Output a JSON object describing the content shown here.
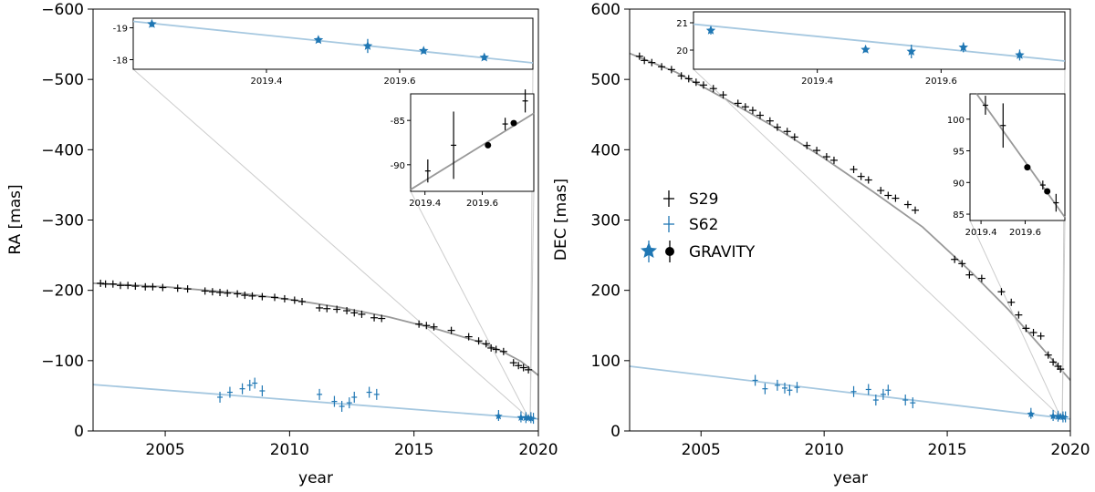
{
  "colors": {
    "black_series": "#000000",
    "blue_series": "#1f77b4",
    "blue_fit": "#a6c8e0",
    "black_fit": "#999999",
    "connector": "#cccccc"
  },
  "chart_data": [
    {
      "type": "scatter",
      "panel": "left",
      "xlabel": "year",
      "ylabel": "RA [mas]",
      "xlim": [
        2002.1,
        2020.0
      ],
      "ylim": [
        0,
        -600
      ],
      "xticks": [
        2005,
        2010,
        2015,
        2020
      ],
      "xtick_labels": [
        "2005",
        "2010",
        "2015",
        "2020"
      ],
      "yticks": [
        0,
        -100,
        -200,
        -300,
        -400,
        -500,
        -600
      ],
      "ytick_labels": [
        "0",
        "−100",
        "−200",
        "−300",
        "−400",
        "−500",
        "−600"
      ],
      "fits": [
        {
          "name": "S29 orbit",
          "x": [
            2002.1,
            2005,
            2008,
            2010,
            2012,
            2014,
            2016,
            2017.5,
            2018.5,
            2019.3,
            2020.0
          ],
          "y": [
            -210,
            -205,
            -196,
            -187,
            -176,
            -162,
            -144,
            -128,
            -114,
            -99,
            -79
          ]
        },
        {
          "name": "S62 orbit",
          "x": [
            2002.1,
            2020.0
          ],
          "y": [
            -66,
            -17
          ]
        }
      ],
      "series": [
        {
          "name": "S29",
          "x": [
            2002.4,
            2002.6,
            2002.9,
            2003.2,
            2003.5,
            2003.8,
            2004.2,
            2004.5,
            2004.9,
            2005.5,
            2005.9,
            2006.6,
            2006.9,
            2007.2,
            2007.5,
            2007.9,
            2008.2,
            2008.5,
            2008.9,
            2009.4,
            2009.8,
            2010.2,
            2010.5,
            2011.2,
            2011.5,
            2011.9,
            2012.3,
            2012.6,
            2012.9,
            2013.4,
            2013.7,
            2015.2,
            2015.5,
            2015.8,
            2016.5,
            2017.2,
            2017.6,
            2017.9,
            2018.1,
            2018.3,
            2018.6,
            2019.0,
            2019.2,
            2019.4,
            2019.6
          ],
          "y": [
            -210,
            -209,
            -209,
            -207,
            -207,
            -206,
            -205,
            -205,
            -204,
            -203,
            -202,
            -199,
            -198,
            -197,
            -196,
            -195,
            -193,
            -192,
            -191,
            -190,
            -188,
            -186,
            -184,
            -175,
            -174,
            -173,
            -171,
            -168,
            -166,
            -161,
            -160,
            -152,
            -150,
            -148,
            -143,
            -134,
            -128,
            -124,
            -118,
            -116,
            -113,
            -97,
            -93,
            -90,
            -87
          ]
        },
        {
          "name": "S62",
          "x": [
            2007.2,
            2007.6,
            2008.1,
            2008.4,
            2008.6,
            2008.9,
            2011.2,
            2011.8,
            2012.1,
            2012.4,
            2012.6,
            2013.2,
            2013.5,
            2018.4,
            2019.3,
            2019.5,
            2019.7,
            2019.8
          ],
          "y": [
            -48,
            -55,
            -60,
            -65,
            -68,
            -57,
            -52,
            -42,
            -35,
            -40,
            -48,
            -55,
            -52,
            -22,
            -20,
            -19,
            -19,
            -18
          ]
        },
        {
          "name": "GRAVITY S62",
          "x": [
            2018.4,
            2019.3,
            2019.5,
            2019.6,
            2019.7
          ],
          "y": [
            -21,
            -19,
            -19,
            -18.5,
            -18
          ]
        }
      ],
      "inset_top": {
        "xlim": [
          2019.2,
          2019.8
        ],
        "ylim": [
          -17.7,
          -19.3
        ],
        "xticks": [
          2019.4,
          2019.6
        ],
        "xtick_labels": [
          "2019.4",
          "2019.6"
        ],
        "yticks": [
          -19,
          -18
        ],
        "ytick_labels": [
          "-19",
          "-18"
        ],
        "fit": {
          "x": [
            2019.2,
            2019.8
          ],
          "y": [
            -19.2,
            -17.9
          ]
        },
        "points": [
          {
            "x": 2019.228,
            "y": -19.12,
            "err": 0.1
          },
          {
            "x": 2019.478,
            "y": -18.62,
            "err": 0.06
          },
          {
            "x": 2019.552,
            "y": -18.43,
            "err": 0.22
          },
          {
            "x": 2019.636,
            "y": -18.28,
            "err": 0.08
          },
          {
            "x": 2019.727,
            "y": -18.07,
            "err": 0.05
          }
        ]
      },
      "inset_right": {
        "xlim": [
          2019.35,
          2019.78
        ],
        "ylim": [
          -93,
          -82
        ],
        "xticks": [
          2019.4,
          2019.6
        ],
        "xtick_labels": [
          "2019.4",
          "2019.6"
        ],
        "yticks": [
          -90,
          -85
        ],
        "ytick_labels": [
          "-90",
          "-85"
        ],
        "fit": {
          "x": [
            2019.35,
            2019.78
          ],
          "y": [
            -92.8,
            -84.2
          ]
        },
        "points_plus": [
          {
            "x": 2019.41,
            "y": -90.7,
            "err": 1.3
          },
          {
            "x": 2019.5,
            "y": -87.8,
            "err": 3.8
          },
          {
            "x": 2019.68,
            "y": -85.4,
            "err": 0.7
          },
          {
            "x": 2019.75,
            "y": -82.8,
            "err": 1.3
          }
        ],
        "points_dot": [
          {
            "x": 2019.62,
            "y": -87.8,
            "err": 0.3
          },
          {
            "x": 2019.71,
            "y": -85.3,
            "err": 0.3
          }
        ]
      }
    },
    {
      "type": "scatter",
      "panel": "right",
      "xlabel": "year",
      "ylabel": "DEC [mas]",
      "xlim": [
        2002.1,
        2020.0
      ],
      "ylim": [
        0,
        600
      ],
      "xticks": [
        2005,
        2010,
        2015,
        2020
      ],
      "xtick_labels": [
        "2005",
        "2010",
        "2015",
        "2020"
      ],
      "yticks": [
        0,
        100,
        200,
        300,
        400,
        500,
        600
      ],
      "ytick_labels": [
        "0",
        "100",
        "200",
        "300",
        "400",
        "500",
        "600"
      ],
      "fits": [
        {
          "name": "S29 orbit",
          "x": [
            2002.1,
            2004,
            2006,
            2008,
            2010,
            2012,
            2014,
            2016,
            2017.5,
            2018.5,
            2019.3,
            2020.0
          ],
          "y": [
            537,
            510,
            472,
            432,
            388,
            340,
            290,
            225,
            172,
            132,
            100,
            72
          ]
        },
        {
          "name": "S62 orbit",
          "x": [
            2002.1,
            2020.0
          ],
          "y": [
            92,
            17
          ]
        }
      ],
      "series": [
        {
          "name": "S29",
          "x": [
            2002.5,
            2002.7,
            2003.0,
            2003.4,
            2003.8,
            2004.2,
            2004.5,
            2004.8,
            2005.1,
            2005.5,
            2005.9,
            2006.5,
            2006.8,
            2007.1,
            2007.4,
            2007.8,
            2008.1,
            2008.5,
            2008.8,
            2009.3,
            2009.7,
            2010.1,
            2010.4,
            2011.2,
            2011.5,
            2011.8,
            2012.3,
            2012.6,
            2012.9,
            2013.4,
            2013.7,
            2015.3,
            2015.6,
            2015.9,
            2016.4,
            2017.2,
            2017.6,
            2017.9,
            2018.2,
            2018.5,
            2018.8,
            2019.1,
            2019.3,
            2019.5,
            2019.6
          ],
          "y": [
            533,
            527,
            524,
            518,
            514,
            505,
            501,
            496,
            492,
            487,
            478,
            466,
            461,
            456,
            449,
            441,
            432,
            426,
            418,
            406,
            399,
            390,
            385,
            372,
            362,
            357,
            342,
            335,
            331,
            322,
            314,
            244,
            238,
            222,
            217,
            198,
            183,
            165,
            146,
            140,
            135,
            108,
            98,
            92,
            88
          ]
        },
        {
          "name": "S62",
          "x": [
            2007.2,
            2007.6,
            2008.1,
            2008.4,
            2008.6,
            2008.9,
            2011.2,
            2011.8,
            2012.1,
            2012.4,
            2012.6,
            2013.3,
            2013.6,
            2018.4,
            2019.3,
            2019.5,
            2019.7,
            2019.8
          ],
          "y": [
            72,
            60,
            65,
            61,
            58,
            62,
            56,
            59,
            44,
            52,
            58,
            44,
            40,
            25,
            22,
            21,
            20,
            20
          ]
        },
        {
          "name": "GRAVITY S62",
          "x": [
            2018.4,
            2019.3,
            2019.5,
            2019.6,
            2019.7
          ],
          "y": [
            24,
            21,
            20.5,
            20.2,
            20
          ]
        }
      ],
      "inset_top": {
        "xlim": [
          2019.2,
          2019.8
        ],
        "ylim": [
          19.3,
          21.4
        ],
        "xticks": [
          2019.4,
          2019.6
        ],
        "xtick_labels": [
          "2019.4",
          "2019.6"
        ],
        "yticks": [
          20,
          21
        ],
        "ytick_labels": [
          "20",
          "21"
        ],
        "fit": {
          "x": [
            2019.2,
            2019.8
          ],
          "y": [
            20.95,
            19.6
          ]
        },
        "points": [
          {
            "x": 2019.228,
            "y": 20.72,
            "err": 0.15
          },
          {
            "x": 2019.478,
            "y": 20.02,
            "err": 0.1
          },
          {
            "x": 2019.552,
            "y": 19.95,
            "err": 0.25
          },
          {
            "x": 2019.636,
            "y": 20.1,
            "err": 0.18
          },
          {
            "x": 2019.727,
            "y": 19.82,
            "err": 0.2
          }
        ]
      },
      "inset_right": {
        "xlim": [
          2019.35,
          2019.78
        ],
        "ylim": [
          84,
          104
        ],
        "xticks": [
          2019.4,
          2019.6
        ],
        "xtick_labels": [
          "2019.4",
          "2019.6"
        ],
        "yticks": [
          85,
          90,
          95,
          100
        ],
        "ytick_labels": [
          "85",
          "90",
          "95",
          "100"
        ],
        "fit": {
          "x": [
            2019.38,
            2019.78
          ],
          "y": [
            104,
            84.5
          ]
        },
        "points_plus": [
          {
            "x": 2019.42,
            "y": 102.2,
            "err": 1.5
          },
          {
            "x": 2019.5,
            "y": 99.0,
            "err": 3.5
          },
          {
            "x": 2019.68,
            "y": 89.6,
            "err": 0.7
          },
          {
            "x": 2019.74,
            "y": 86.8,
            "err": 1.4
          }
        ],
        "points_dot": [
          {
            "x": 2019.61,
            "y": 92.4,
            "err": 0.3
          },
          {
            "x": 2019.7,
            "y": 88.6,
            "err": 0.3
          }
        ]
      },
      "legend": {
        "placement": "center-left",
        "entries": [
          {
            "label": "S29",
            "marker": "plus",
            "color": "#000000"
          },
          {
            "label": "S62",
            "marker": "plus",
            "color": "#1f77b4"
          },
          {
            "label": "GRAVITY",
            "marker": "star-and-dot",
            "color": "#1f77b4"
          }
        ]
      }
    }
  ]
}
